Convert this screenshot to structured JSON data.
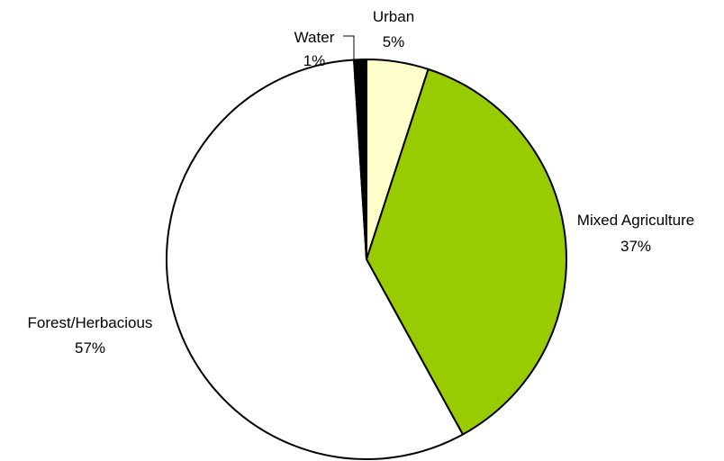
{
  "chart_data": {
    "type": "pie",
    "title": "",
    "slices": [
      {
        "label": "Urban",
        "value": 5,
        "value_label": "5%",
        "color": "#FFFFCC"
      },
      {
        "label": "Mixed Agriculture",
        "value": 37,
        "value_label": "37%",
        "color": "#99CC00"
      },
      {
        "label": "Forest/Herbacious",
        "value": 57,
        "value_label": "57%",
        "color": "#FFFFFF"
      },
      {
        "label": "Water",
        "value": 1,
        "value_label": "1%",
        "color": "#000000"
      }
    ],
    "start_angle": "12 o'clock",
    "direction": "clockwise",
    "legend": "none"
  }
}
